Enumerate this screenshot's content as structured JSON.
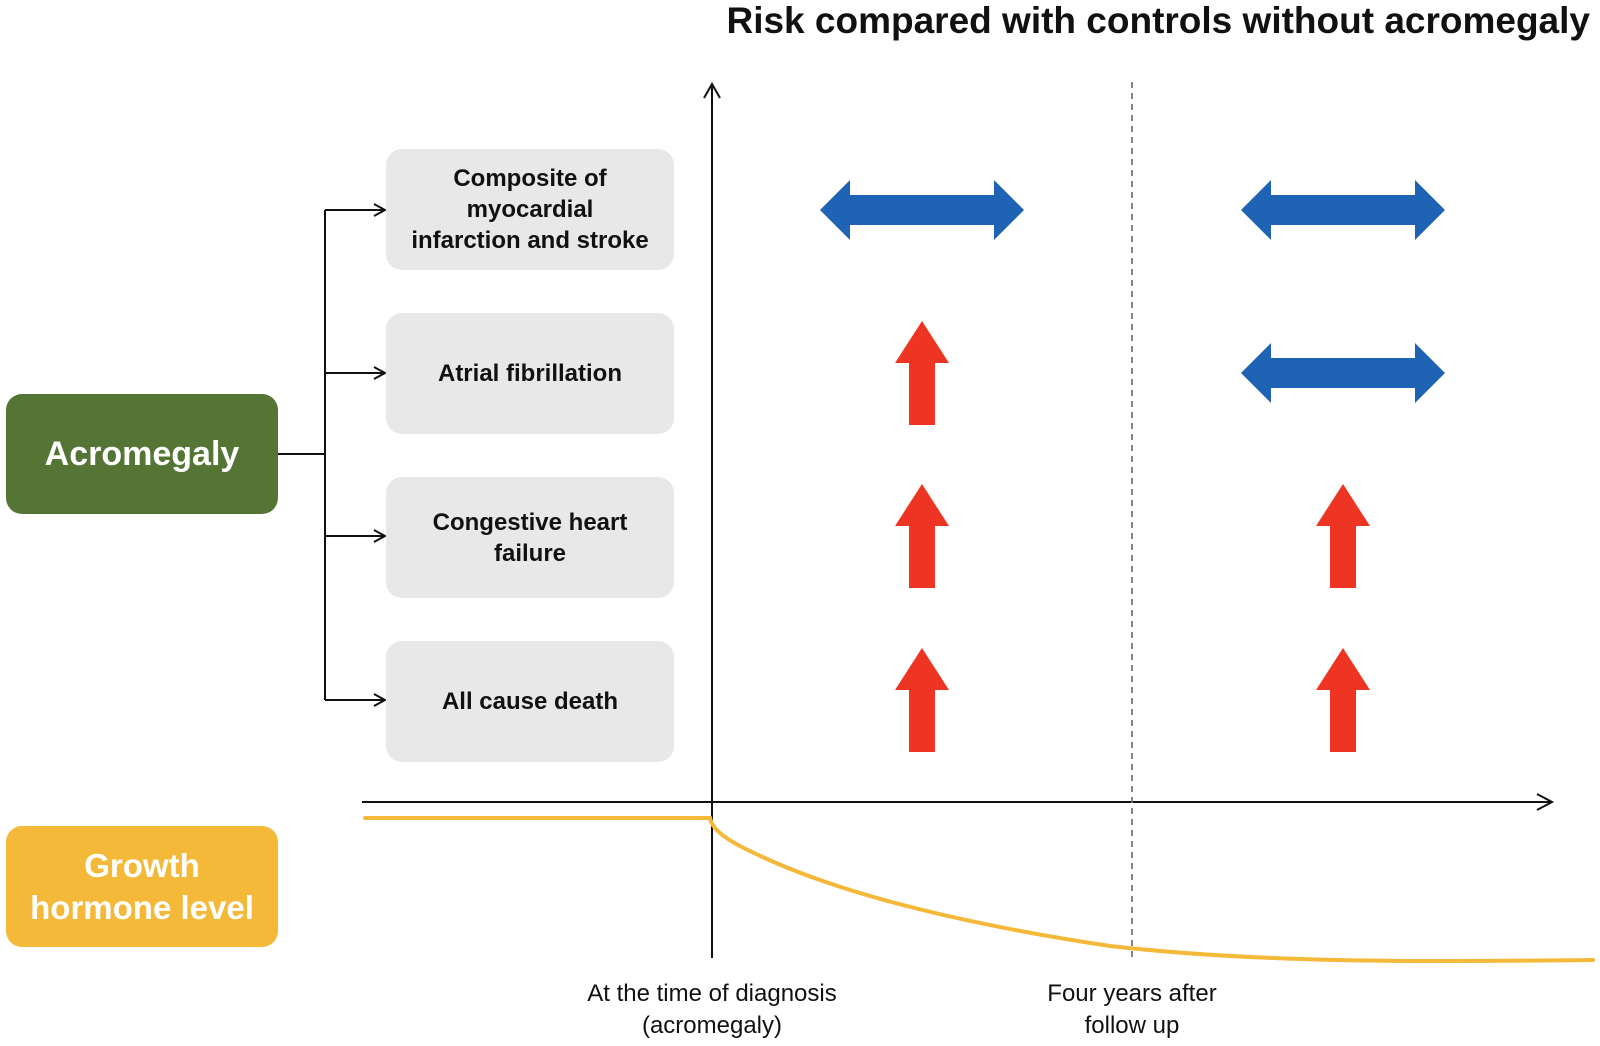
{
  "title": "Risk compared with controls without acromegaly",
  "main_box": {
    "label": "Acromegaly",
    "color": "#557535"
  },
  "growth_hormone_box": {
    "line1": "Growth",
    "line2": "hormone level",
    "color": "#f5b93a"
  },
  "outcomes": [
    {
      "lines": [
        "Composite of",
        "myocardial",
        "infarction and stroke"
      ],
      "at_diagnosis": "no-difference",
      "four_years": "no-difference"
    },
    {
      "lines": [
        "Atrial fibrillation"
      ],
      "at_diagnosis": "increased",
      "four_years": "no-difference"
    },
    {
      "lines": [
        "Congestive heart",
        "failure"
      ],
      "at_diagnosis": "increased",
      "four_years": "increased"
    },
    {
      "lines": [
        "All cause death"
      ],
      "at_diagnosis": "increased",
      "four_years": "increased"
    }
  ],
  "timepoints": {
    "diagnosis": {
      "line1": "At the time of diagnosis",
      "line2": "(acromegaly)"
    },
    "four_years": {
      "line1": "Four years after",
      "line2": "follow up"
    }
  },
  "colors": {
    "no_difference_arrow": "#1f63b5",
    "increased_arrow": "#ee3524",
    "gh_curve": "#f5b93a",
    "outcome_box": "#e8e8e8"
  },
  "icons": {
    "no_difference": "double-headed-horizontal-arrow-icon",
    "increased": "up-arrow-icon"
  }
}
